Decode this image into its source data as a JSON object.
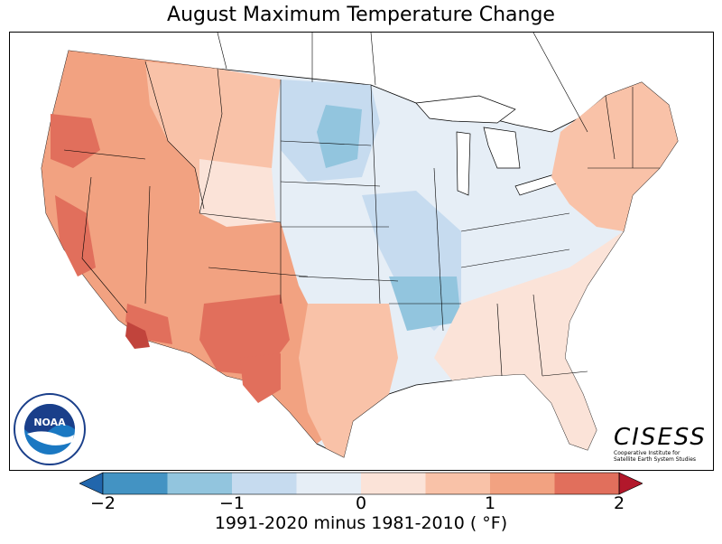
{
  "title": "August Maximum Temperature Change",
  "colorbar": {
    "label": "1991-2020 minus 1981-2010 ( °F)",
    "ticks": [
      "−2",
      "−1",
      "0",
      "1",
      "2"
    ],
    "tick_values": [
      -2,
      -1,
      0,
      1,
      2
    ],
    "range": [
      -2.5,
      2.5
    ],
    "bins": [
      {
        "from": -2.5,
        "to": -2.0,
        "color": "#2166ac"
      },
      {
        "from": -2.0,
        "to": -1.5,
        "color": "#4393c3"
      },
      {
        "from": -1.5,
        "to": -1.0,
        "color": "#92c5de"
      },
      {
        "from": -1.0,
        "to": -0.5,
        "color": "#c6dbef"
      },
      {
        "from": -0.5,
        "to": 0.0,
        "color": "#e6eef6"
      },
      {
        "from": 0.0,
        "to": 0.5,
        "color": "#fbe3d8"
      },
      {
        "from": 0.5,
        "to": 1.0,
        "color": "#f9c2a8"
      },
      {
        "from": 1.0,
        "to": 1.5,
        "color": "#f2a281"
      },
      {
        "from": 1.5,
        "to": 2.0,
        "color": "#e16f5c"
      },
      {
        "from": 2.0,
        "to": 2.5,
        "color": "#b2182b"
      }
    ]
  },
  "logos": {
    "noaa": {
      "text": "NOAA",
      "ring_text": "NATIONAL OCEANIC AND ATMOSPHERIC ADMINISTRATION • U.S. DEPARTMENT OF COMMERCE"
    },
    "cisess": {
      "word": "CISESS",
      "subtitle_1": "Cooperative Institute for",
      "subtitle_2": "Satellite Earth System Studies"
    }
  },
  "map_regions": [
    {
      "name": "pacific-northwest",
      "color": "#f2a281"
    },
    {
      "name": "california",
      "color": "#f2a281"
    },
    {
      "name": "southwest",
      "color": "#f2a281"
    },
    {
      "name": "southern-arizona",
      "color": "#e16f5c"
    },
    {
      "name": "west-texas",
      "color": "#e16f5c"
    },
    {
      "name": "northern-rockies",
      "color": "#f9c2a8"
    },
    {
      "name": "central-plains",
      "color": "#e6eef6"
    },
    {
      "name": "upper-midwest",
      "color": "#c6dbef"
    },
    {
      "name": "mississippi-valley",
      "color": "#c6dbef"
    },
    {
      "name": "southeast",
      "color": "#fbe3d8"
    },
    {
      "name": "northeast",
      "color": "#f9c2a8"
    },
    {
      "name": "florida",
      "color": "#fbe3d8"
    }
  ]
}
